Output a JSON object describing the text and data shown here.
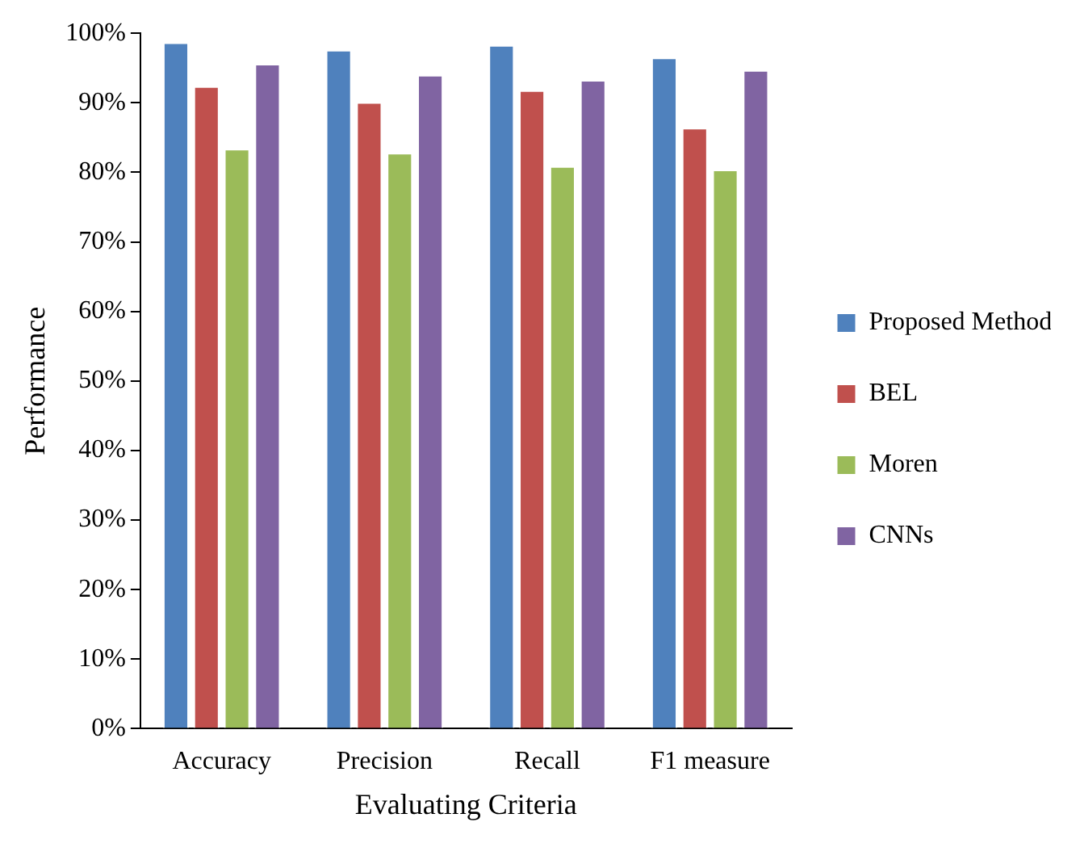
{
  "chart_data": {
    "type": "bar",
    "xlabel": "Evaluating Criteria",
    "ylabel": "Performance",
    "categories": [
      "Accuracy",
      "Precision",
      "Recall",
      "F1 measure"
    ],
    "series": [
      {
        "name": "Proposed Method",
        "color": "#4f81bd",
        "values": [
          98.7,
          97.6,
          98.3,
          96.5
        ]
      },
      {
        "name": "BEL",
        "color": "#c0504d",
        "values": [
          92.4,
          90.1,
          91.8,
          86.4
        ]
      },
      {
        "name": "Moren",
        "color": "#9bbb59",
        "values": [
          83.4,
          82.8,
          80.9,
          80.4
        ]
      },
      {
        "name": "CNNs",
        "color": "#8064a2",
        "values": [
          95.6,
          94.0,
          93.3,
          94.7
        ]
      }
    ],
    "ylim": [
      0,
      100
    ],
    "yticks": [
      {
        "value": 0,
        "label": "0%"
      },
      {
        "value": 10,
        "label": "10%"
      },
      {
        "value": 20,
        "label": "20%"
      },
      {
        "value": 30,
        "label": "30%"
      },
      {
        "value": 40,
        "label": "40%"
      },
      {
        "value": 50,
        "label": "50%"
      },
      {
        "value": 60,
        "label": "60%"
      },
      {
        "value": 70,
        "label": "70%"
      },
      {
        "value": 80,
        "label": "80%"
      },
      {
        "value": 90,
        "label": "90%"
      },
      {
        "value": 100,
        "label": "100%"
      }
    ],
    "grid": false,
    "legend": "right"
  }
}
